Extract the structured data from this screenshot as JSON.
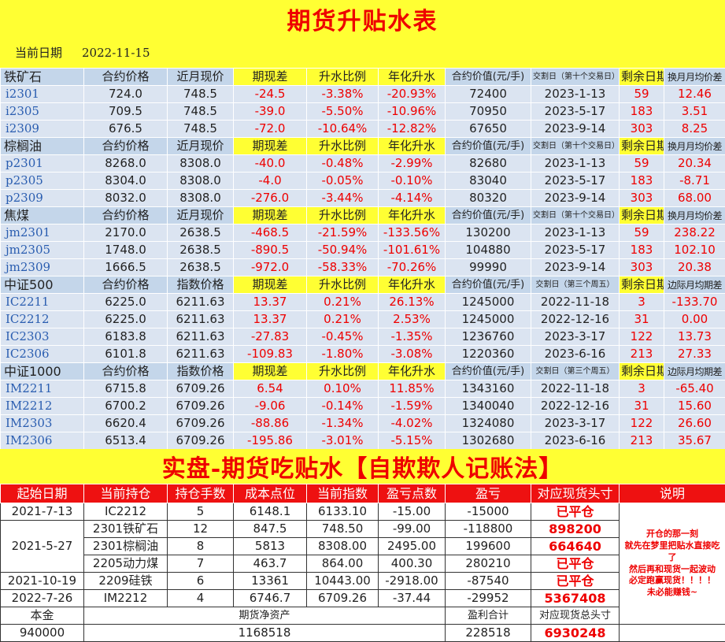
{
  "title": "期货升贴水表",
  "date_label": "当前日期",
  "date_value": "2022-11-15",
  "groups": [
    {
      "name": "铁矿石",
      "headers": [
        "合约价格",
        "近月现价",
        "期现差",
        "升水比例",
        "年化升水",
        "合约价值(元/手)",
        "交割日（第十个交易日）",
        "剩余日期",
        "换月月均价差"
      ],
      "rows": [
        [
          "i2301",
          "724.0",
          "748.5",
          "-24.5",
          "-3.38%",
          "-20.93%",
          "72400",
          "2023-1-13",
          "59",
          "12.46"
        ],
        [
          "i2305",
          "709.5",
          "748.5",
          "-39.0",
          "-5.50%",
          "-10.96%",
          "70950",
          "2023-5-17",
          "183",
          "3.51"
        ],
        [
          "i2309",
          "676.5",
          "748.5",
          "-72.0",
          "-10.64%",
          "-12.82%",
          "67650",
          "2023-9-14",
          "303",
          "8.25"
        ]
      ]
    },
    {
      "name": "棕榈油",
      "headers": [
        "合约价格",
        "近月现价",
        "期现差",
        "升水比例",
        "年化升水",
        "合约价值(元/手)",
        "交割日（第十个交易日）",
        "剩余日期",
        "换月月均价差"
      ],
      "rows": [
        [
          "p2301",
          "8268.0",
          "8308.0",
          "-40.0",
          "-0.48%",
          "-2.99%",
          "82680",
          "2023-1-13",
          "59",
          "20.34"
        ],
        [
          "p2305",
          "8304.0",
          "8308.0",
          "-4.0",
          "-0.05%",
          "-0.10%",
          "83040",
          "2023-5-17",
          "183",
          "-8.71"
        ],
        [
          "p2309",
          "8032.0",
          "8308.0",
          "-276.0",
          "-3.44%",
          "-4.14%",
          "80320",
          "2023-9-14",
          "303",
          "68.00"
        ]
      ]
    },
    {
      "name": "焦煤",
      "headers": [
        "合约价格",
        "近月现价",
        "期现差",
        "升水比例",
        "年化升水",
        "合约价值(元/手)",
        "交割日（第十个交易日）",
        "剩余日期",
        "换月月均价差"
      ],
      "rows": [
        [
          "jm2301",
          "2170.0",
          "2638.5",
          "-468.5",
          "-21.59%",
          "-133.56%",
          "130200",
          "2023-1-13",
          "59",
          "238.22"
        ],
        [
          "jm2305",
          "1748.0",
          "2638.5",
          "-890.5",
          "-50.94%",
          "-101.61%",
          "104880",
          "2023-5-17",
          "183",
          "102.10"
        ],
        [
          "jm2309",
          "1666.5",
          "2638.5",
          "-972.0",
          "-58.33%",
          "-70.26%",
          "99990",
          "2023-9-14",
          "303",
          "20.38"
        ]
      ]
    },
    {
      "name": "中证500",
      "headers": [
        "合约价格",
        "指数价格",
        "期现差",
        "升水比例",
        "年化升水",
        "合约价值(元/手)",
        "交割日（第三个周五）",
        "剩余日期",
        "边际月均期差"
      ],
      "rows": [
        [
          "IC2211",
          "6225.0",
          "6211.63",
          "13.37",
          "0.21%",
          "26.13%",
          "1245000",
          "2022-11-18",
          "3",
          "-133.70"
        ],
        [
          "IC2212",
          "6225.0",
          "6211.63",
          "13.37",
          "0.21%",
          "2.53%",
          "1245000",
          "2022-12-16",
          "31",
          "0.00"
        ],
        [
          "IC2303",
          "6183.8",
          "6211.63",
          "-27.83",
          "-0.45%",
          "-1.35%",
          "1236760",
          "2023-3-17",
          "122",
          "13.73"
        ],
        [
          "IC2306",
          "6101.8",
          "6211.63",
          "-109.83",
          "-1.80%",
          "-3.08%",
          "1220360",
          "2023-6-16",
          "213",
          "27.33"
        ]
      ]
    },
    {
      "name": "中证1000",
      "headers": [
        "合约价格",
        "指数价格",
        "期现差",
        "升水比例",
        "年化升水",
        "合约价值(元/手)",
        "交割日（第三个周五）",
        "剩余日期",
        "边际月均期差"
      ],
      "rows": [
        [
          "IM2211",
          "6715.8",
          "6709.26",
          "6.54",
          "0.10%",
          "11.85%",
          "1343160",
          "2022-11-18",
          "3",
          "-65.40"
        ],
        [
          "IM2212",
          "6700.2",
          "6709.26",
          "-9.06",
          "-0.14%",
          "-1.59%",
          "1340040",
          "2022-12-16",
          "31",
          "15.60"
        ],
        [
          "IM2303",
          "6620.4",
          "6709.26",
          "-88.86",
          "-1.34%",
          "-4.02%",
          "1324080",
          "2023-3-17",
          "122",
          "26.60"
        ],
        [
          "IM2306",
          "6513.4",
          "6709.26",
          "-195.86",
          "-3.01%",
          "-5.15%",
          "1302680",
          "2023-6-16",
          "213",
          "35.67"
        ]
      ]
    }
  ],
  "real_title": "实盘-期货吃贴水【自欺欺人记账法】",
  "ledger": {
    "headers": [
      "起始日期",
      "当前持仓",
      "持仓手数",
      "成本点位",
      "当前指数",
      "盈亏点数",
      "盈亏",
      "对应现货头寸",
      "说明"
    ],
    "rows": [
      {
        "date": "2021-7-13",
        "pos": "IC2212",
        "lots": "5",
        "cost": "6148.1",
        "idx": "6133.10",
        "pts": "-15.00",
        "pnl": "-15000",
        "spot": "已平仓"
      },
      {
        "date": "2021-5-27",
        "pos": "2301铁矿石",
        "lots": "12",
        "cost": "847.5",
        "idx": "748.50",
        "pts": "-99.00",
        "pnl": "-118800",
        "spot": "898200"
      },
      {
        "date": "",
        "pos": "2301棕榈油",
        "lots": "8",
        "cost": "5813",
        "idx": "8308.00",
        "pts": "2495.00",
        "pnl": "199600",
        "spot": "664640"
      },
      {
        "date": "",
        "pos": "2205动力煤",
        "lots": "7",
        "cost": "463.7",
        "idx": "864.00",
        "pts": "400.30",
        "pnl": "280210",
        "spot": "已平仓"
      },
      {
        "date": "2021-10-19",
        "pos": "2209硅铁",
        "lots": "6",
        "cost": "13361",
        "idx": "10443.00",
        "pts": "-2918.00",
        "pnl": "-87540",
        "spot": "已平仓"
      },
      {
        "date": "2022-7-26",
        "pos": "IM2212",
        "lots": "4",
        "cost": "6746.7",
        "idx": "6709.26",
        "pts": "-37.44",
        "pnl": "-29952",
        "spot": "5367408"
      }
    ],
    "note_lines": [
      "开仓的那一刻",
      "就先在梦里把贴水直接吃了",
      "然后再和现货一起波动",
      "必定跑赢现货！！！！",
      "未必能赚钱~"
    ],
    "footer": {
      "principal_label": "本金",
      "principal_value": "940000",
      "net_assets_label": "期货净资产",
      "net_assets_value": "1168518",
      "total_pnl_label": "盈利合计",
      "total_pnl_value": "228518",
      "total_spot_label": "对应现货总头寸",
      "total_spot_value": "6930248"
    }
  }
}
